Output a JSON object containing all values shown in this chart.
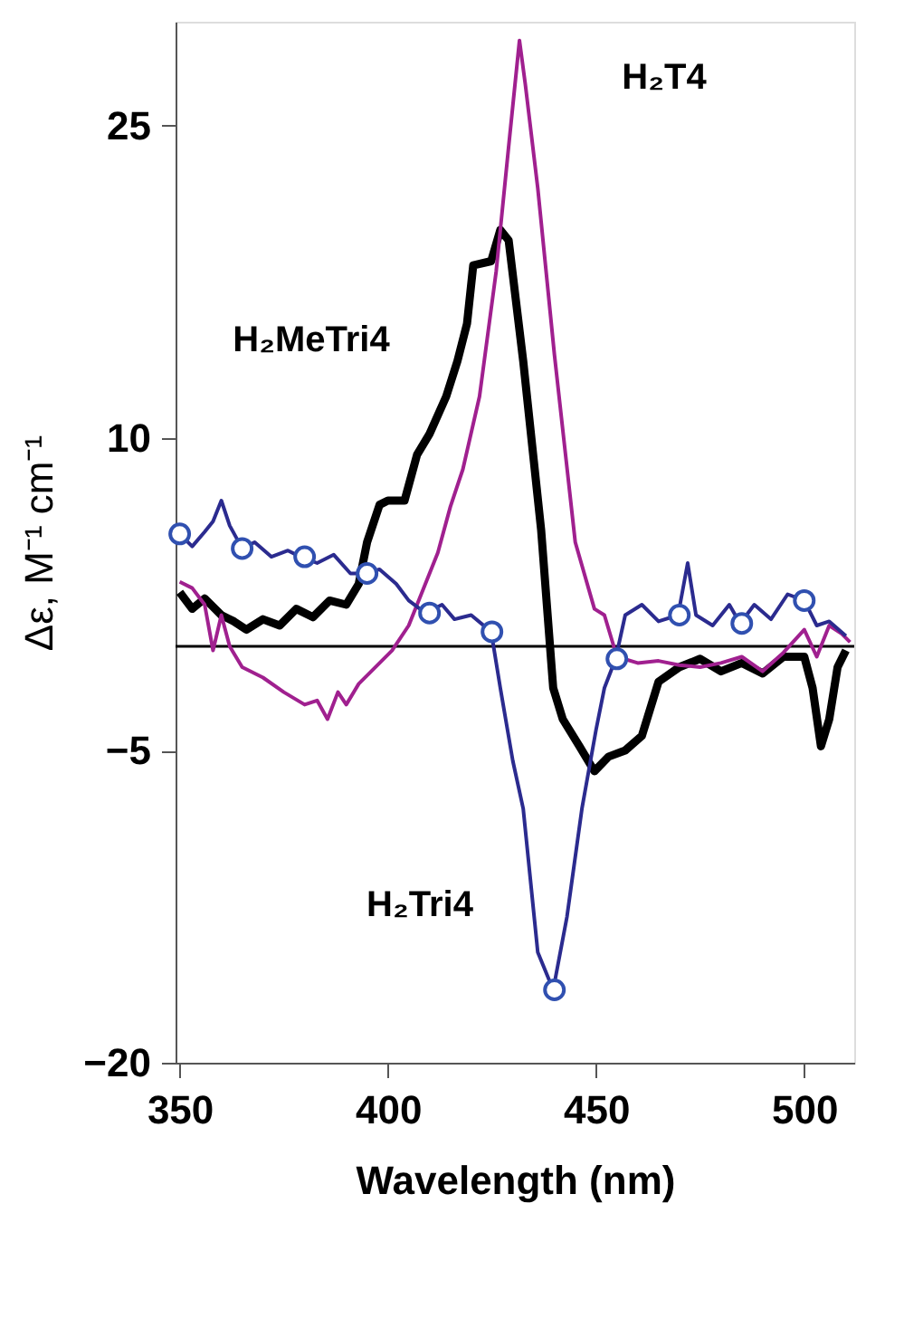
{
  "chart_data": {
    "type": "line",
    "xlabel": "Wavelength (nm)",
    "ylabel": "Δε, M⁻¹ cm⁻¹",
    "xlim": [
      349,
      512
    ],
    "ylim": [
      -20,
      30
    ],
    "xticks": [
      350,
      400,
      450,
      500
    ],
    "yticks": [
      -20,
      -5,
      10,
      25
    ],
    "grid": false,
    "marker": "none",
    "line_style": "solid",
    "ref_lines": [
      {
        "axis": "y",
        "value": 0,
        "color": "#000000"
      }
    ],
    "series": [
      {
        "name": "H₂MeTri4",
        "color": "#000000",
        "x": [
          350,
          353,
          356,
          360,
          363,
          366,
          370,
          374,
          378,
          382,
          386,
          390,
          393,
          395,
          398,
          400,
          404,
          407,
          410,
          414,
          416.7,
          419,
          420.5,
          424.8,
          427,
          429,
          432.5,
          436.8,
          439.7,
          442,
          446,
          449.6,
          453,
          457,
          461,
          465,
          470,
          475,
          480,
          485,
          490,
          495,
          500,
          502,
          504,
          506,
          508,
          510
        ],
        "values": [
          2.6,
          1.8,
          2.3,
          1.5,
          1.2,
          0.8,
          1.3,
          1.0,
          1.8,
          1.4,
          2.2,
          2.0,
          3.0,
          5,
          6.8,
          7,
          7,
          9.2,
          10.2,
          12,
          13.7,
          15.5,
          18.3,
          18.5,
          20,
          19.5,
          13.7,
          5.6,
          -2,
          -3.5,
          -4.8,
          -6,
          -5.3,
          -5,
          -4.3,
          -1.7,
          -1.0,
          -0.6,
          -1.2,
          -0.8,
          -1.3,
          -0.5,
          -0.5,
          -2,
          -4.8,
          -3.5,
          -1,
          -0.2
        ]
      },
      {
        "name": "H₂T4",
        "color": "#a0208f",
        "x": [
          350,
          353,
          356,
          358,
          360,
          362,
          365,
          370,
          375,
          380,
          383,
          385.5,
          388,
          390,
          393,
          396,
          401,
          405,
          408,
          412,
          415,
          418,
          422,
          426,
          429,
          431.6,
          433,
          436,
          440,
          445,
          449.6,
          452,
          455,
          460,
          465,
          470,
          475,
          480,
          485,
          490,
          495,
          500,
          503,
          506,
          509,
          511
        ],
        "values": [
          3.1,
          2.8,
          2.0,
          -0.2,
          1.5,
          0.0,
          -1.0,
          -1.5,
          -2.2,
          -2.8,
          -2.6,
          -3.5,
          -2.2,
          -2.8,
          -1.8,
          -1.2,
          -0.2,
          1.0,
          2.5,
          4.5,
          6.7,
          8.5,
          12,
          18,
          24,
          29.1,
          27,
          22,
          14,
          5,
          1.8,
          1.5,
          -0.5,
          -0.8,
          -0.7,
          -0.9,
          -1.0,
          -0.8,
          -0.5,
          -1.2,
          -0.3,
          0.8,
          -0.5,
          1.0,
          0.6,
          0.2
        ]
      },
      {
        "name": "H₂Tri4",
        "color": "#2b2b8f",
        "x": [
          350,
          353,
          356,
          358,
          360,
          362,
          365,
          368,
          372,
          376,
          379,
          383,
          387,
          391,
          395,
          398,
          402,
          405,
          409,
          413,
          416,
          420,
          424.8,
          427,
          430,
          432.5,
          436,
          439.7,
          443,
          446.6,
          450,
          452,
          454.7,
          457,
          461,
          465,
          469.7,
          472,
          474,
          478,
          482,
          484.6,
          488,
          492,
          496,
          500,
          503,
          506,
          510
        ],
        "values": [
          5.4,
          4.8,
          5.5,
          6.0,
          7.0,
          5.8,
          4.7,
          5.0,
          4.3,
          4.6,
          4.3,
          4.0,
          4.4,
          3.5,
          3.5,
          3.7,
          3.0,
          2.2,
          1.6,
          2.0,
          1.3,
          1.5,
          0.7,
          -2,
          -5.5,
          -7.8,
          -14.7,
          -16.5,
          -13,
          -7.8,
          -4,
          -2,
          -0.6,
          1.5,
          2.0,
          1.2,
          1.5,
          4.0,
          1.5,
          1.0,
          2.0,
          1.1,
          2.0,
          1.3,
          2.5,
          2.2,
          1.0,
          1.2,
          0.5
        ]
      },
      {
        "type": "scatter",
        "marker": "circle",
        "color": "#3050b0",
        "x": [
          350,
          365,
          380,
          395,
          410,
          425,
          440,
          455,
          470,
          485,
          500
        ],
        "values": [
          5.4,
          4.7,
          4.3,
          3.5,
          1.6,
          0.7,
          -16.5,
          -0.6,
          1.5,
          1.1,
          2.2
        ]
      }
    ]
  }
}
